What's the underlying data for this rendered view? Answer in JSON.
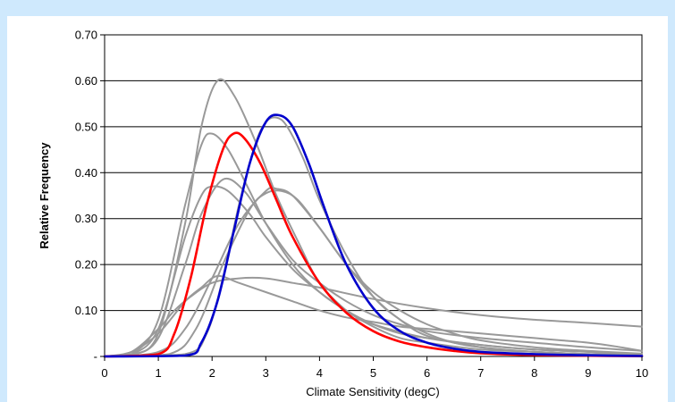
{
  "chart_data": {
    "type": "line",
    "title": "",
    "xlabel": "Climate Sensitivity (degC)",
    "ylabel": "Relative Frequency",
    "xlim": [
      0,
      10
    ],
    "ylim": [
      0,
      0.7
    ],
    "x_ticks": [
      0,
      1,
      2,
      3,
      4,
      5,
      6,
      7,
      8,
      9,
      10
    ],
    "x_tick_labels": [
      "0",
      "1",
      "2",
      "3",
      "4",
      "5",
      "6",
      "7",
      "8",
      "9",
      "10"
    ],
    "y_ticks": [
      0,
      0.1,
      0.2,
      0.3,
      0.4,
      0.5,
      0.6,
      0.7
    ],
    "y_tick_labels": [
      "-",
      "0.10",
      "0.20",
      "0.30",
      "0.40",
      "0.50",
      "0.60",
      "0.70"
    ],
    "grid": "horizontal",
    "legend": "none",
    "series": [
      {
        "color": "#999999",
        "x": [
          0,
          0.5,
          1,
          1.5,
          1.8,
          2.1,
          2.4,
          2.8,
          3.2,
          3.6,
          4,
          4.5,
          5,
          5.5,
          6,
          7,
          8,
          9,
          10
        ],
        "y": [
          0,
          0.003,
          0.05,
          0.29,
          0.5,
          0.6,
          0.57,
          0.47,
          0.35,
          0.25,
          0.16,
          0.1,
          0.065,
          0.04,
          0.03,
          0.015,
          0.01,
          0.005,
          0.003
        ]
      },
      {
        "color": "#999999",
        "x": [
          0,
          0.5,
          1,
          1.5,
          1.8,
          2,
          2.3,
          2.7,
          3,
          3.5,
          4,
          4.5,
          5,
          5.5,
          6,
          7,
          8,
          9,
          10
        ],
        "y": [
          0,
          0.005,
          0.08,
          0.33,
          0.46,
          0.485,
          0.45,
          0.36,
          0.29,
          0.2,
          0.14,
          0.1,
          0.07,
          0.05,
          0.04,
          0.025,
          0.015,
          0.01,
          0.005
        ]
      },
      {
        "color": "#999999",
        "x": [
          0,
          0.5,
          1,
          1.5,
          1.8,
          2,
          2.3,
          2.7,
          3,
          3.5,
          4,
          4.5,
          5,
          6,
          7,
          8,
          9,
          10
        ],
        "y": [
          0,
          0.004,
          0.06,
          0.26,
          0.35,
          0.37,
          0.36,
          0.31,
          0.26,
          0.19,
          0.14,
          0.1,
          0.07,
          0.04,
          0.025,
          0.015,
          0.01,
          0.005
        ]
      },
      {
        "color": "#999999",
        "x": [
          0,
          0.5,
          1,
          1.5,
          1.8,
          2.2,
          2.6,
          3,
          3.5,
          4,
          4.5,
          5,
          5.5,
          6,
          7,
          8,
          9,
          10
        ],
        "y": [
          0,
          0.003,
          0.04,
          0.2,
          0.31,
          0.385,
          0.36,
          0.29,
          0.21,
          0.16,
          0.12,
          0.09,
          0.07,
          0.055,
          0.04,
          0.03,
          0.02,
          0.012
        ]
      },
      {
        "color": "#999999",
        "x": [
          0,
          0.5,
          1,
          1.3,
          1.6,
          2,
          2.5,
          3,
          3.5,
          4,
          5,
          6,
          7,
          8,
          9,
          10
        ],
        "y": [
          0,
          0.01,
          0.06,
          0.1,
          0.13,
          0.16,
          0.17,
          0.17,
          0.16,
          0.15,
          0.125,
          0.105,
          0.09,
          0.08,
          0.073,
          0.065
        ]
      },
      {
        "color": "#999999",
        "x": [
          0,
          0.5,
          1,
          1.5,
          1.8,
          2.1,
          2.5,
          3,
          3.5,
          4,
          4.5,
          5,
          5.5,
          6,
          6.5,
          7,
          7.5,
          8,
          8.5,
          9,
          9.5,
          10
        ],
        "y": [
          0,
          0.01,
          0.05,
          0.12,
          0.15,
          0.175,
          0.16,
          0.14,
          0.12,
          0.1,
          0.085,
          0.075,
          0.065,
          0.06,
          0.055,
          0.05,
          0.045,
          0.04,
          0.035,
          0.03,
          0.022,
          0.012
        ]
      },
      {
        "color": "#999999",
        "x": [
          0,
          1,
          1.5,
          2,
          2.5,
          3,
          3.2,
          3.5,
          4,
          4.5,
          5,
          5.5,
          6,
          6.5,
          7,
          8,
          9,
          10
        ],
        "y": [
          0,
          0.01,
          0.06,
          0.17,
          0.29,
          0.36,
          0.365,
          0.35,
          0.28,
          0.2,
          0.14,
          0.1,
          0.07,
          0.05,
          0.035,
          0.02,
          0.012,
          0.006
        ]
      },
      {
        "color": "#999999",
        "x": [
          0,
          1.2,
          1.7,
          2.2,
          2.7,
          3,
          3.3,
          3.6,
          4,
          4.5,
          5,
          5.5,
          6,
          6.5,
          7,
          8,
          9,
          10
        ],
        "y": [
          0,
          0.005,
          0.06,
          0.2,
          0.32,
          0.355,
          0.36,
          0.34,
          0.28,
          0.2,
          0.13,
          0.08,
          0.05,
          0.03,
          0.02,
          0.01,
          0.005,
          0.003
        ]
      },
      {
        "color": "#999999",
        "x": [
          0,
          1.5,
          1.9,
          2.2,
          2.5,
          2.8,
          3,
          3.2,
          3.4,
          3.7,
          4,
          4.5,
          5,
          5.5,
          6,
          7,
          8,
          9,
          10
        ],
        "y": [
          0,
          0.005,
          0.05,
          0.17,
          0.33,
          0.46,
          0.51,
          0.52,
          0.5,
          0.43,
          0.34,
          0.22,
          0.13,
          0.08,
          0.045,
          0.02,
          0.01,
          0.005,
          0.002
        ]
      },
      {
        "color": "#ff0000",
        "x": [
          0,
          1,
          1.3,
          1.6,
          1.9,
          2.2,
          2.4,
          2.6,
          2.9,
          3.2,
          3.5,
          4,
          4.5,
          5,
          5.5,
          6,
          6.5,
          7,
          8,
          9,
          10
        ],
        "y": [
          0,
          0.005,
          0.05,
          0.17,
          0.33,
          0.45,
          0.485,
          0.475,
          0.42,
          0.34,
          0.26,
          0.16,
          0.095,
          0.055,
          0.032,
          0.02,
          0.012,
          0.007,
          0.003,
          0.0015,
          0.0005
        ]
      },
      {
        "color": "#0000cc",
        "x": [
          0,
          1.5,
          1.8,
          2.1,
          2.4,
          2.7,
          3,
          3.25,
          3.5,
          3.8,
          4.1,
          4.5,
          5,
          5.5,
          6,
          6.5,
          7,
          8,
          9,
          10
        ],
        "y": [
          0,
          0.002,
          0.03,
          0.12,
          0.27,
          0.42,
          0.51,
          0.525,
          0.5,
          0.42,
          0.32,
          0.2,
          0.105,
          0.055,
          0.03,
          0.017,
          0.01,
          0.005,
          0.0025,
          0.001
        ]
      }
    ]
  }
}
